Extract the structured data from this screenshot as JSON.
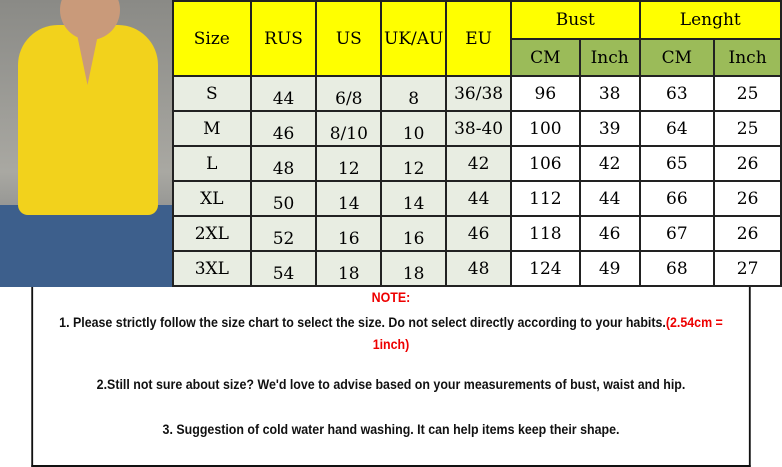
{
  "header": {
    "size": "Size",
    "rus": "RUS",
    "us": "US",
    "ukau": "UK/AU",
    "eu": "EU",
    "bust": "Bust",
    "length": "Lenght",
    "cm": "CM",
    "inch": "Inch"
  },
  "rows": [
    [
      "S",
      "44",
      "6/8",
      "8",
      "36/38",
      "96",
      "38",
      "63",
      "25"
    ],
    [
      "M",
      "46",
      "8/10",
      "10",
      "38-40",
      "100",
      "39",
      "64",
      "25"
    ],
    [
      "L",
      "48",
      "12",
      "12",
      "42",
      "106",
      "42",
      "65",
      "26"
    ],
    [
      "XL",
      "50",
      "14",
      "14",
      "44",
      "112",
      "44",
      "66",
      "26"
    ],
    [
      "2XL",
      "52",
      "16",
      "16",
      "46",
      "118",
      "46",
      "67",
      "26"
    ],
    [
      "3XL",
      "54",
      "18",
      "18",
      "48",
      "124",
      "49",
      "68",
      "27"
    ]
  ],
  "notes": {
    "title": "NOTE:",
    "n1": "1. Please strictly follow the size chart to select the size. Do not select directly according to your habits.",
    "n1_red": "(2.54cm = 1inch)",
    "n2": "2.Still not sure about size? We'd love to advise based on your measurements of bust, waist and hip.",
    "n3": "3. Suggestion of cold water hand washing. It can help items keep their shape."
  },
  "colors": {
    "header": "#ffff00",
    "subheader": "#9bbb59",
    "note_red": "#e00000"
  }
}
